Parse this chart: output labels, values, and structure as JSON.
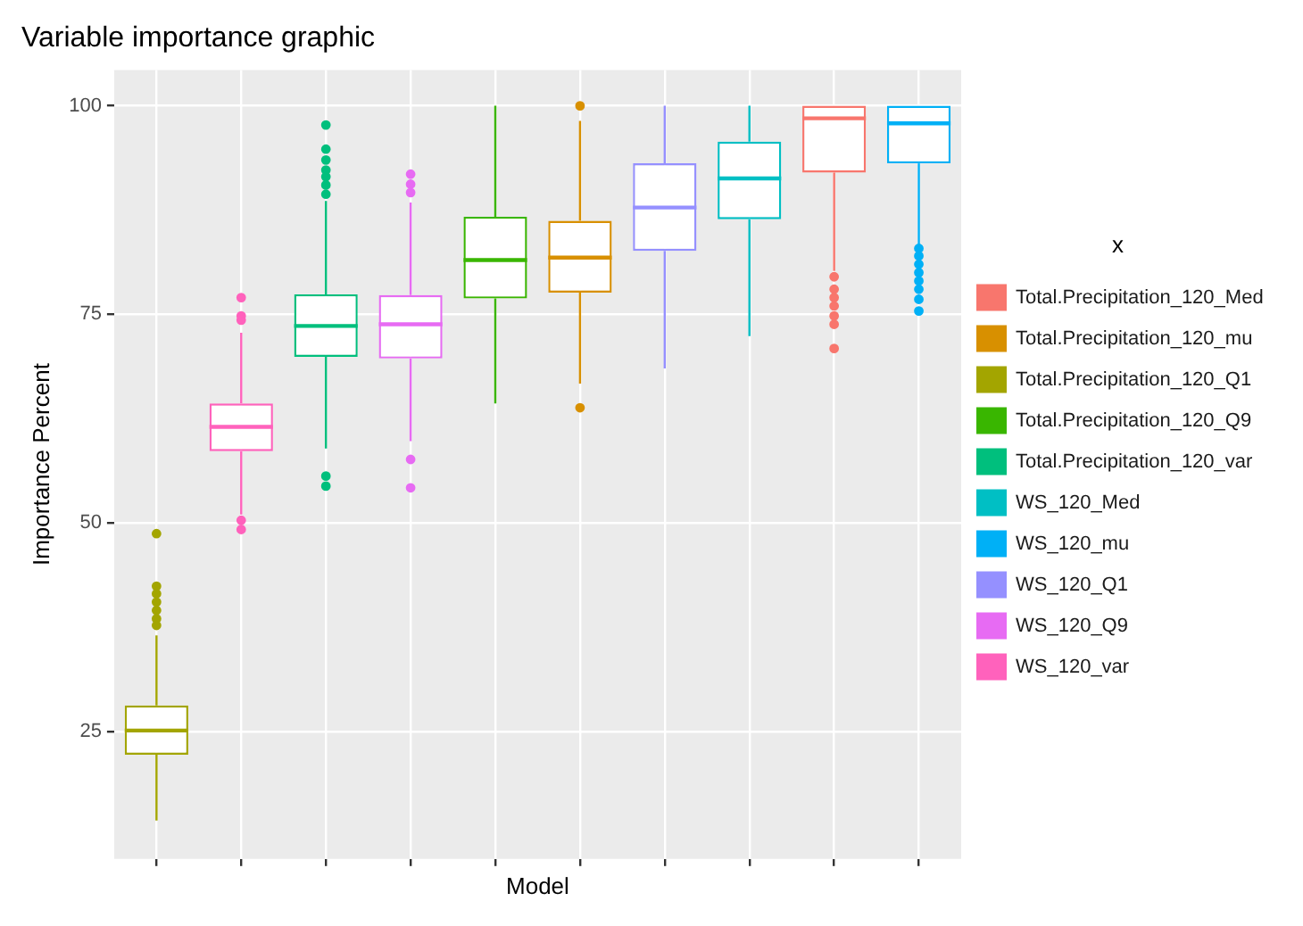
{
  "chart_data": {
    "type": "box",
    "title": "Variable importance graphic",
    "xlabel": "Model",
    "ylabel": "Importance Percent",
    "legend_title": "x",
    "categories": [
      null,
      null,
      null,
      null,
      null,
      null,
      null,
      null,
      null,
      null
    ],
    "series": [
      {
        "name": "Total.Precipitation_120_Med",
        "color": "#f8766d",
        "boxes": [
          null,
          null,
          null,
          null,
          null,
          null,
          null,
          null,
          {
            "low": 80.2,
            "q1": 92.0,
            "median": 98.5,
            "q3": 100,
            "high": 100,
            "outliers": [
              70.9,
              73.8,
              74.8,
              76,
              77,
              78,
              79.5
            ]
          },
          null
        ]
      },
      {
        "name": "Total.Precipitation_120_mu",
        "color": "#d89000",
        "boxes": [
          null,
          null,
          null,
          null,
          null,
          {
            "low": 66.7,
            "q1": 77.6,
            "median": 81.8,
            "q3": 86.2,
            "high": 98.2,
            "outliers": [
              63.8,
              100
            ]
          },
          null,
          null,
          null,
          null
        ]
      },
      {
        "name": "Total.Precipitation_120_Q1",
        "color": "#a3a500",
        "boxes": [
          {
            "low": 14.3,
            "q1": 22.2,
            "median": 25.1,
            "q3": 28.1,
            "high": 36.5,
            "outliers": [
              37.7,
              38.5,
              39.5,
              40.5,
              41.5,
              42.4,
              48.7
            ]
          },
          null,
          null,
          null,
          null,
          null,
          null,
          null,
          null,
          null
        ]
      },
      {
        "name": "Total.Precipitation_120_Q9",
        "color": "#39b600",
        "boxes": [
          null,
          null,
          null,
          null,
          {
            "low": 64.3,
            "q1": 76.9,
            "median": 81.5,
            "q3": 86.7,
            "high": 100
          },
          null,
          null,
          null,
          null,
          null
        ]
      },
      {
        "name": "Total.Precipitation_120_var",
        "color": "#00bf7d",
        "boxes": [
          null,
          null,
          {
            "low": 58.9,
            "q1": 69.9,
            "median": 73.6,
            "q3": 77.4,
            "high": 88.6,
            "outliers": [
              54.4,
              55.6,
              89.4,
              90.5,
              91.5,
              92.3,
              93.5,
              94.8,
              97.7
            ]
          },
          null,
          null,
          null,
          null,
          null,
          null,
          null
        ]
      },
      {
        "name": "WS_120_Med",
        "color": "#00bfc4",
        "boxes": [
          null,
          null,
          null,
          null,
          null,
          null,
          null,
          {
            "low": 72.4,
            "q1": 86.4,
            "median": 91.3,
            "q3": 95.7,
            "high": 100
          },
          null,
          null
        ]
      },
      {
        "name": "WS_120_mu",
        "color": "#00b0f6",
        "boxes": [
          null,
          null,
          null,
          null,
          null,
          null,
          null,
          null,
          null,
          {
            "low": 83.0,
            "q1": 93.1,
            "median": 97.9,
            "q3": 100,
            "high": 100,
            "outliers": [
              75.4,
              76.8,
              78,
              79,
              80,
              81,
              82,
              82.9
            ]
          }
        ]
      },
      {
        "name": "WS_120_Q1",
        "color": "#9590ff",
        "boxes": [
          null,
          null,
          null,
          null,
          null,
          null,
          {
            "low": 68.5,
            "q1": 82.6,
            "median": 87.8,
            "q3": 93.1,
            "high": 100
          },
          null,
          null,
          null
        ]
      },
      {
        "name": "WS_120_Q9",
        "color": "#e76bf3",
        "boxes": [
          null,
          null,
          null,
          {
            "low": 59.8,
            "q1": 69.7,
            "median": 73.8,
            "q3": 77.3,
            "high": 88.4,
            "outliers": [
              54.2,
              57.6,
              89.6,
              90.6,
              91.8
            ]
          },
          null,
          null,
          null,
          null,
          null,
          null
        ]
      },
      {
        "name": "WS_120_var",
        "color": "#ff62bc",
        "boxes": [
          null,
          {
            "low": 51.0,
            "q1": 58.6,
            "median": 61.5,
            "q3": 64.3,
            "high": 72.8,
            "outliers": [
              49.2,
              50.3,
              74.3,
              74.8,
              77.0
            ]
          },
          null,
          null,
          null,
          null,
          null,
          null,
          null,
          null
        ]
      }
    ],
    "ylim": [
      9.7,
      104.3
    ],
    "yticks": [
      25,
      50,
      75,
      100
    ],
    "grid": true,
    "legend": "right",
    "tick_labels": "y"
  }
}
